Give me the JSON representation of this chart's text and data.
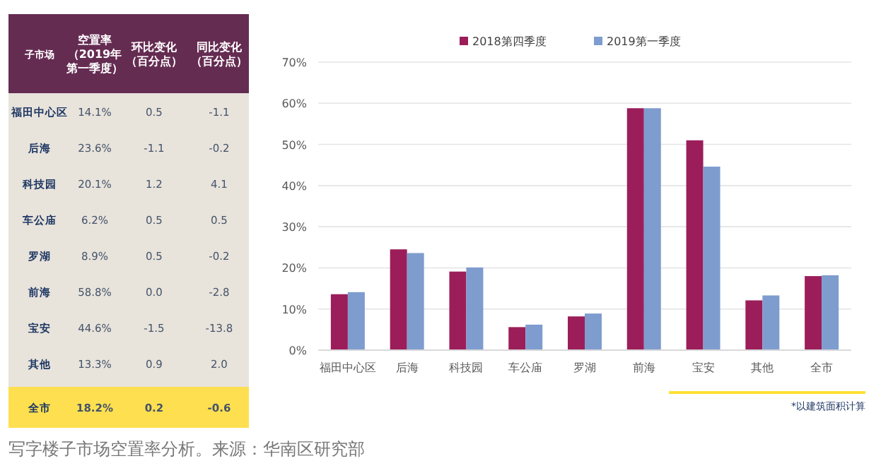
{
  "chart_data": [
    {
      "type": "other",
      "ylabel": "子市场",
      "categories": [
        "空置率（2019年第一季度）",
        "环比变化（百分点）",
        "同比变化（百分点）"
      ],
      "y_categories": [
        "福田中心区",
        "后海",
        "科技园",
        "车公庙",
        "罗湖",
        "前海",
        "宝安",
        "其他",
        "全市"
      ],
      "cell_labels": [
        [
          "14.1%",
          "0.5",
          "-1.1"
        ],
        [
          "23.6%",
          "-1.1",
          "-0.2"
        ],
        [
          "20.1%",
          "1.2",
          "4.1"
        ],
        [
          "6.2%",
          "0.5",
          "0.5"
        ],
        [
          "8.9%",
          "0.5",
          "-0.2"
        ],
        [
          "58.8%",
          "0.0",
          "-2.8"
        ],
        [
          "44.6%",
          "-1.5",
          "-13.8"
        ],
        [
          "13.3%",
          "0.9",
          "2.0"
        ],
        [
          "18.2%",
          "0.2",
          "-0.6"
        ]
      ]
    },
    {
      "type": "bar",
      "categories": [
        "福田中心区",
        "后海",
        "科技园",
        "车公庙",
        "罗湖",
        "前海",
        "宝安",
        "其他",
        "全市"
      ],
      "series": [
        {
          "name": "2018第四季度",
          "color": "#9b1e5a",
          "values": [
            13.6,
            24.5,
            19.1,
            5.6,
            8.2,
            58.8,
            51.0,
            12.1,
            18.0
          ]
        },
        {
          "name": "2019第一季度",
          "color": "#7f9ccf",
          "values": [
            14.1,
            23.6,
            20.1,
            6.2,
            8.9,
            58.8,
            44.6,
            13.3,
            18.2
          ]
        }
      ],
      "ylim": [
        0,
        70
      ],
      "yticks": [
        {
          "value": 0,
          "label": "0%"
        },
        {
          "value": 10,
          "label": "10%"
        },
        {
          "value": 20,
          "label": "20%"
        },
        {
          "value": 30,
          "label": "30%"
        },
        {
          "value": 40,
          "label": "40%"
        },
        {
          "value": 50,
          "label": "50%"
        },
        {
          "value": 60,
          "label": "60%"
        },
        {
          "value": 70,
          "label": "70%"
        }
      ],
      "grid": "y",
      "legend": "top",
      "annotations": [
        "*以建筑面积计算",
        "写字楼子市场空置率分析。来源：华南区研究部"
      ]
    }
  ]
}
